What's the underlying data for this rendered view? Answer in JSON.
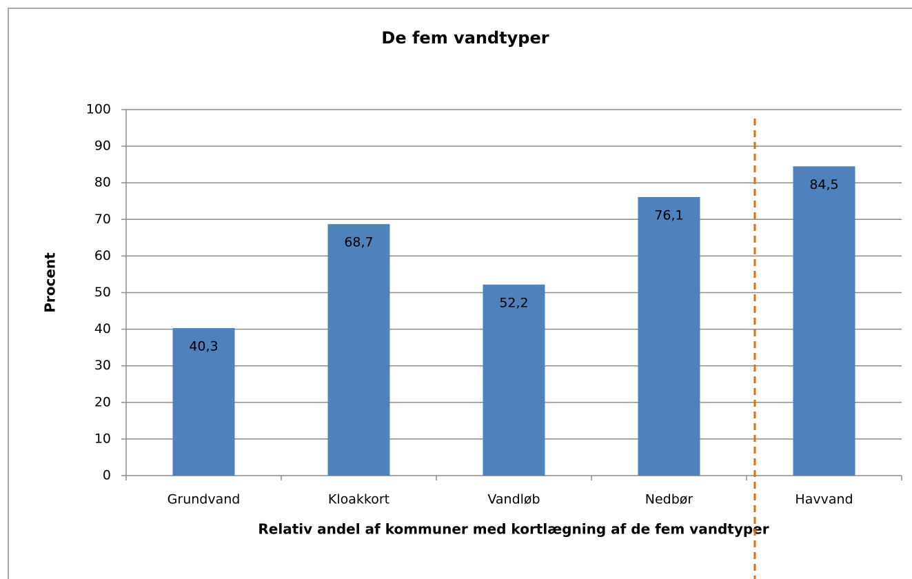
{
  "chart_data": {
    "type": "bar",
    "title": "De fem vandtyper",
    "x_label": "Relativ andel af kommuner med kortlægning af de fem vandtyper",
    "y_label": "Procent",
    "categories": [
      "Grundvand",
      "Kloakkort",
      "Vandløb",
      "Nedbør",
      "Havvand"
    ],
    "values": [
      40.3,
      68.7,
      52.2,
      76.1,
      84.5
    ],
    "value_labels": [
      "40,3",
      "68,7",
      "52,2",
      "76,1",
      "84,5"
    ],
    "color": "#4f81bd",
    "ylim": [
      0,
      100
    ],
    "yticks": [
      0,
      10,
      20,
      30,
      40,
      50,
      60,
      70,
      80,
      90,
      100
    ],
    "grid": true
  }
}
